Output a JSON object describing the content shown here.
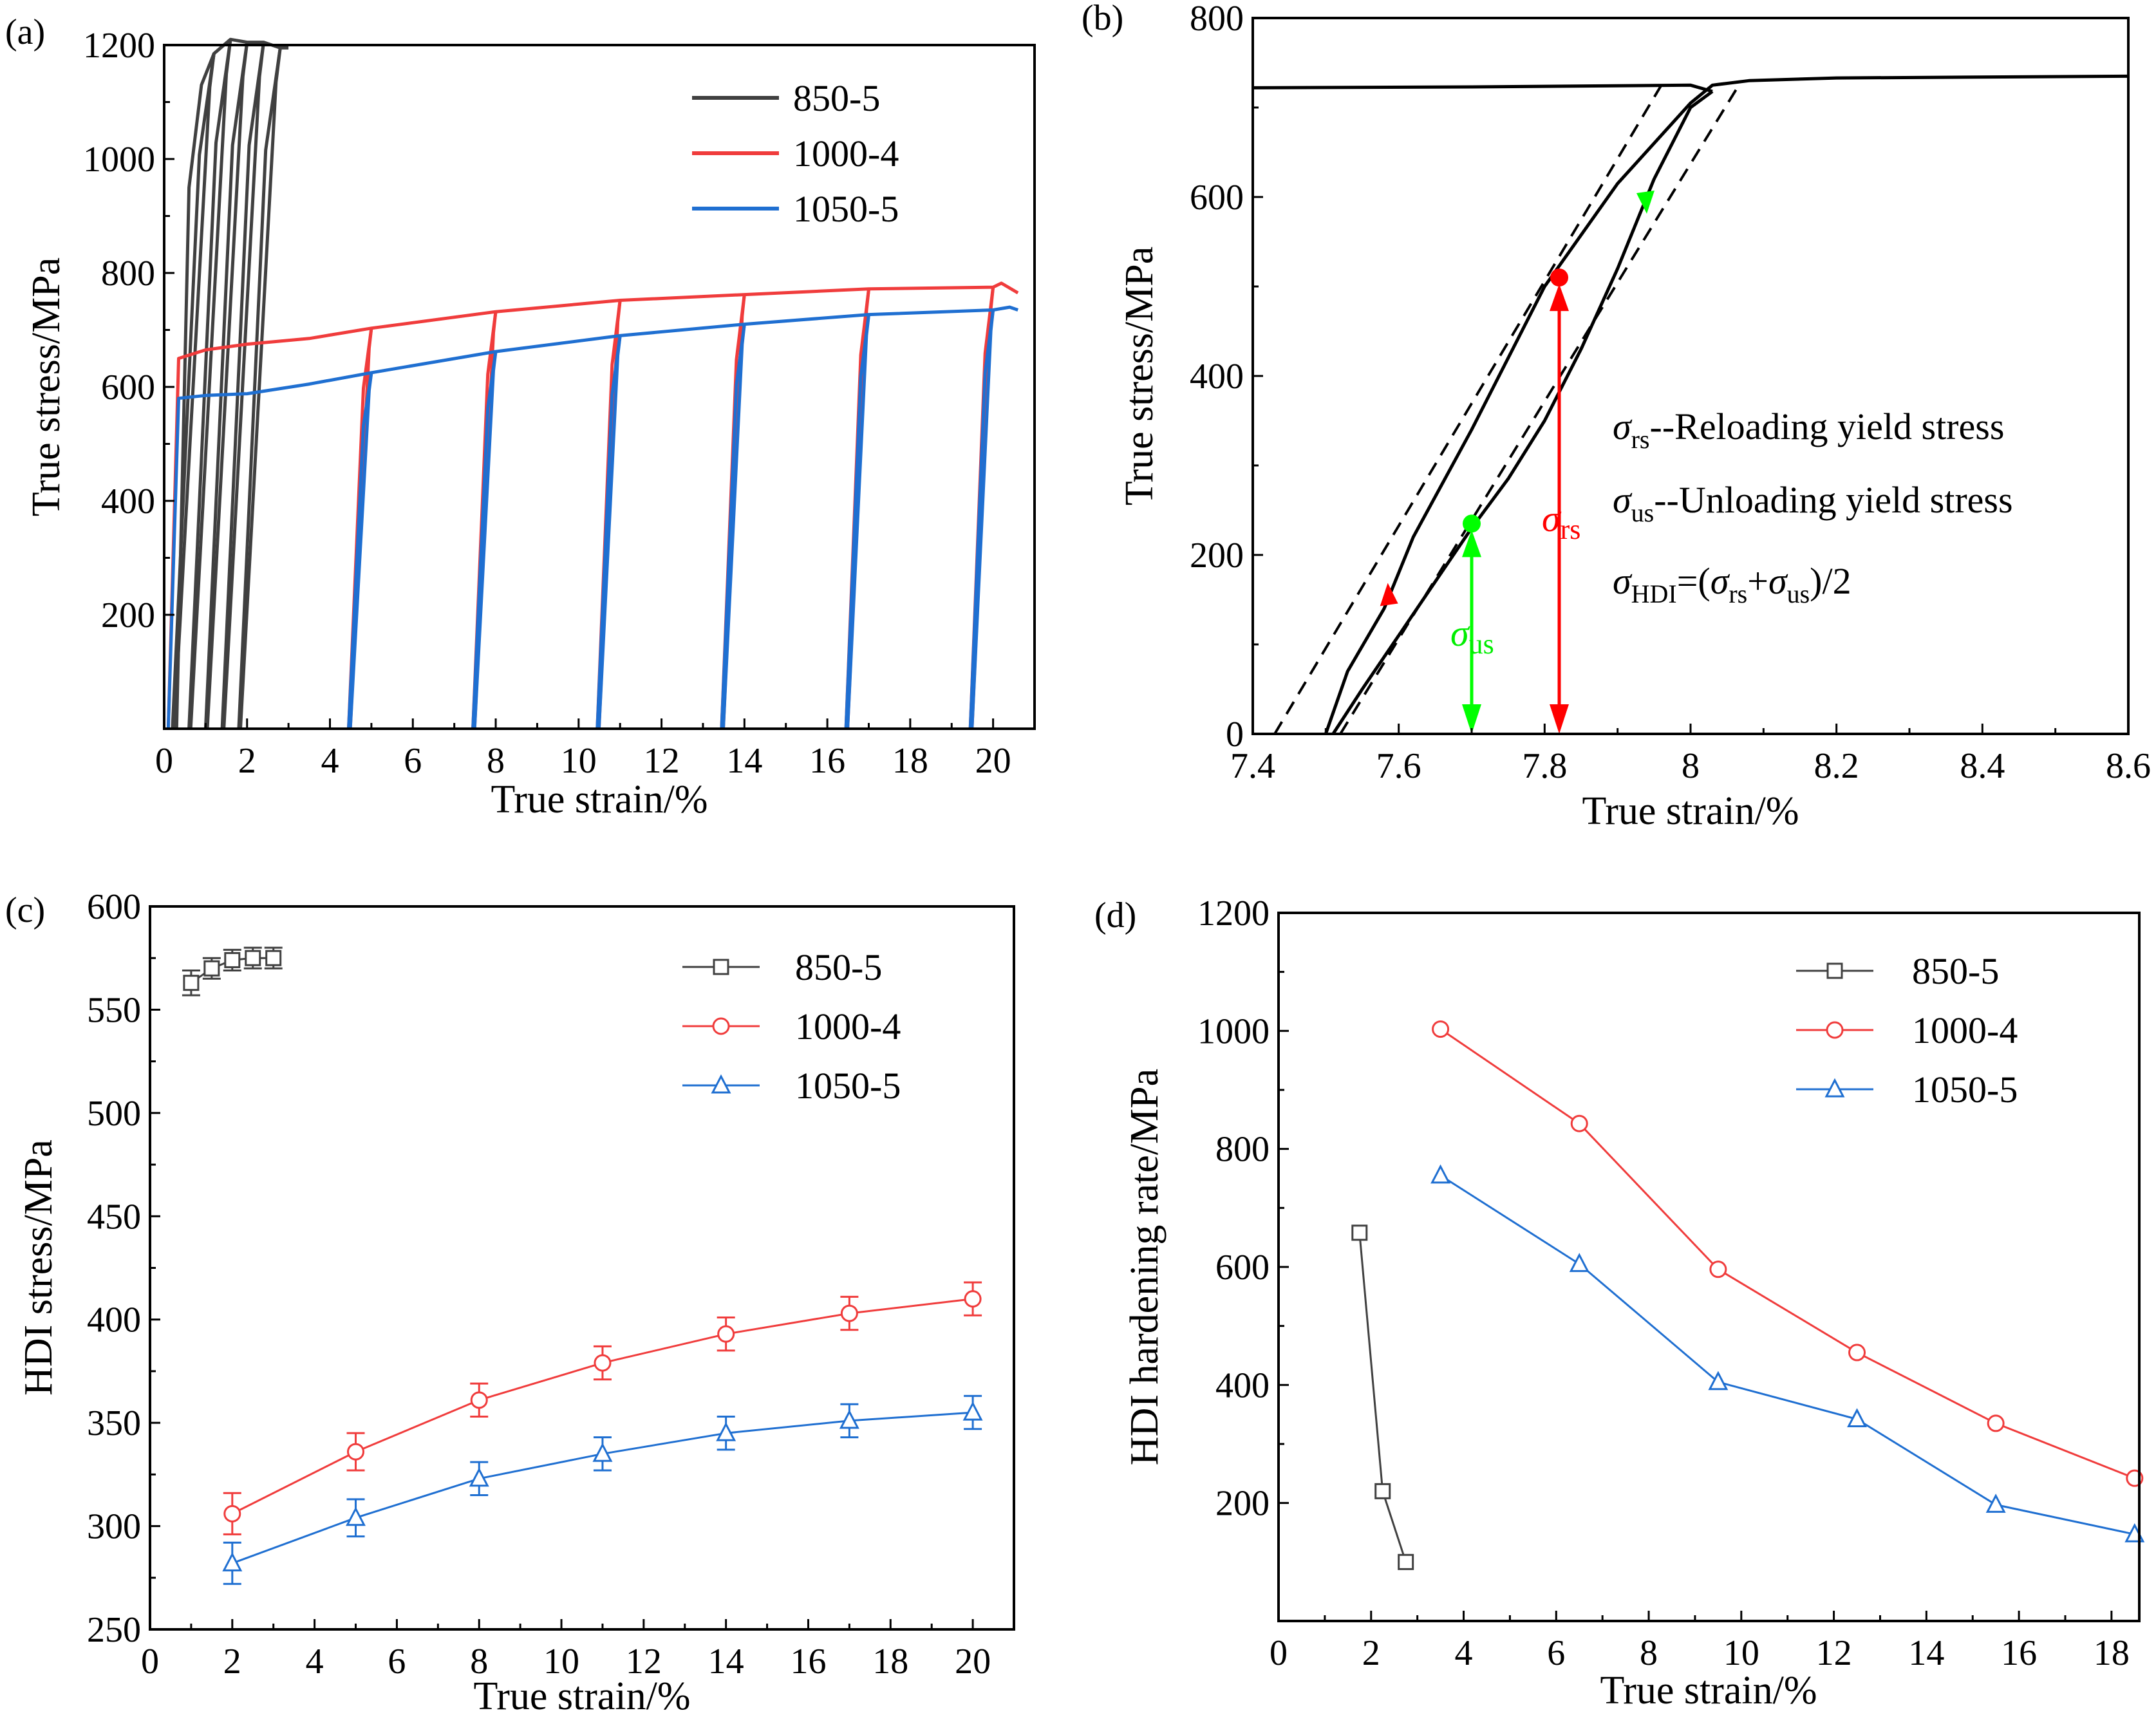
{
  "figure": {
    "panels": [
      {
        "label": "(a)",
        "name": "panel-a-stress-strain"
      },
      {
        "label": "(b)",
        "name": "panel-b-loop-detail"
      },
      {
        "label": "(c)",
        "name": "panel-c-hdi-stress"
      },
      {
        "label": "(d)",
        "name": "panel-d-hdi-hardening"
      }
    ]
  },
  "colors": {
    "s850": "#404040",
    "s1000": "#f03c3c",
    "s1050": "#1f6fd1",
    "red_marker": "#ff0000",
    "green_marker": "#00ff00"
  },
  "chart_data": [
    {
      "id": "a",
      "type": "line",
      "title": "",
      "xlabel": "True strain/%",
      "ylabel": "True stress/MPa",
      "xlim": [
        0,
        21
      ],
      "ylim": [
        0,
        1200
      ],
      "xticks": [
        0,
        2,
        4,
        6,
        8,
        10,
        12,
        14,
        16,
        18,
        20
      ],
      "yticks": [
        200,
        400,
        600,
        800,
        1000,
        1200
      ],
      "legend_position": "top-right",
      "series": [
        {
          "name": "850-5",
          "color_key": "s850",
          "envelope": [
            [
              0.3,
              0
            ],
            [
              0.6,
              950
            ],
            [
              0.9,
              1130
            ],
            [
              1.2,
              1185
            ],
            [
              1.6,
              1210
            ],
            [
              2.0,
              1205
            ],
            [
              2.4,
              1205
            ],
            [
              2.8,
              1195
            ],
            [
              3.0,
              1195
            ]
          ],
          "unload_strains": [
            1.2,
            1.6,
            2.0,
            2.4,
            2.8
          ],
          "loop_width": 1.0
        },
        {
          "name": "1000-4",
          "color_key": "s1000",
          "envelope": [
            [
              0.1,
              0
            ],
            [
              0.35,
              650
            ],
            [
              1.0,
              665
            ],
            [
              2.0,
              675
            ],
            [
              3.5,
              685
            ],
            [
              5.0,
              703
            ],
            [
              8.0,
              732
            ],
            [
              11.0,
              752
            ],
            [
              14.0,
              762
            ],
            [
              17.0,
              772
            ],
            [
              20.0,
              775
            ],
            [
              20.2,
              782
            ],
            [
              20.6,
              765
            ]
          ],
          "unload_strains": [
            5.0,
            8.0,
            11.0,
            14.0,
            17.0,
            20.0
          ],
          "loop_width": 0.55
        },
        {
          "name": "1050-5",
          "color_key": "s1050",
          "envelope": [
            [
              0.1,
              0
            ],
            [
              0.35,
              580
            ],
            [
              1.0,
              585
            ],
            [
              2.0,
              588
            ],
            [
              3.5,
              605
            ],
            [
              5.0,
              625
            ],
            [
              8.0,
              662
            ],
            [
              11.0,
              690
            ],
            [
              14.0,
              710
            ],
            [
              17.0,
              727
            ],
            [
              20.0,
              735
            ],
            [
              20.4,
              740
            ],
            [
              20.6,
              735
            ]
          ],
          "unload_strains": [
            5.0,
            8.0,
            11.0,
            14.0,
            17.0,
            20.0
          ],
          "loop_width": 0.55
        }
      ]
    },
    {
      "id": "b",
      "type": "line",
      "title": "",
      "xlabel": "True strain/%",
      "ylabel": "True stress/MPa",
      "xlim": [
        7.4,
        8.6
      ],
      "ylim": [
        0,
        800
      ],
      "xticks": [
        7.4,
        7.6,
        7.8,
        8.0,
        8.2,
        8.4,
        8.6
      ],
      "yticks": [
        0,
        200,
        400,
        600,
        800
      ],
      "flow_before": [
        [
          7.4,
          722
        ],
        [
          7.7,
          723
        ],
        [
          8.0,
          725
        ],
        [
          8.03,
          718
        ]
      ],
      "unloading": [
        [
          8.03,
          718
        ],
        [
          8.0,
          700
        ],
        [
          7.95,
          620
        ],
        [
          7.9,
          520
        ],
        [
          7.85,
          430
        ],
        [
          7.8,
          350
        ],
        [
          7.75,
          285
        ],
        [
          7.7,
          230
        ],
        [
          7.65,
          170
        ],
        [
          7.6,
          110
        ],
        [
          7.55,
          50
        ],
        [
          7.51,
          0
        ]
      ],
      "reloading": [
        [
          7.5,
          0
        ],
        [
          7.53,
          70
        ],
        [
          7.58,
          140
        ],
        [
          7.62,
          220
        ],
        [
          7.7,
          340
        ],
        [
          7.8,
          500
        ],
        [
          7.9,
          615
        ],
        [
          8.0,
          705
        ],
        [
          8.03,
          725
        ],
        [
          8.08,
          730
        ],
        [
          8.2,
          733
        ],
        [
          8.6,
          735
        ]
      ],
      "dashed_lines": [
        [
          [
            7.43,
            0
          ],
          [
            7.96,
            725
          ]
        ],
        [
          [
            7.52,
            0
          ],
          [
            8.07,
            730
          ]
        ]
      ],
      "sigma_rs": {
        "x": 7.82,
        "y": 510
      },
      "sigma_us": {
        "x": 7.7,
        "y": 235
      },
      "annotations": {
        "sym": "σ",
        "rs_sub": "rs",
        "us_sub": "us",
        "hdi_sub": "HDI",
        "rs_text": "--Reloading yield stress",
        "us_text": "--Unloading yield stress",
        "eq_open": "=(",
        "plus": "+",
        "eq_close": ")/2"
      }
    },
    {
      "id": "c",
      "type": "line",
      "title": "",
      "xlabel": "True strain/%",
      "ylabel": "HDI stress/MPa",
      "xlim": [
        0,
        21
      ],
      "ylim": [
        250,
        600
      ],
      "xticks": [
        0,
        2,
        4,
        6,
        8,
        10,
        12,
        14,
        16,
        18,
        20
      ],
      "yticks": [
        250,
        300,
        350,
        400,
        450,
        500,
        550,
        600
      ],
      "legend_position": "top-right",
      "series": [
        {
          "name": "850-5",
          "marker": "square",
          "color_key": "s850",
          "x": [
            1,
            1.5,
            2,
            2.5,
            3
          ],
          "y": [
            563,
            570,
            574,
            575,
            575
          ],
          "err": [
            6,
            5,
            5,
            5,
            5
          ]
        },
        {
          "name": "1000-4",
          "marker": "circle",
          "color_key": "s1000",
          "x": [
            2,
            5,
            8,
            11,
            14,
            17,
            20
          ],
          "y": [
            306,
            336,
            361,
            379,
            393,
            403,
            410
          ],
          "err": [
            10,
            9,
            8,
            8,
            8,
            8,
            8
          ]
        },
        {
          "name": "1050-5",
          "marker": "triangle",
          "color_key": "s1050",
          "x": [
            2,
            5,
            8,
            11,
            14,
            17,
            20
          ],
          "y": [
            282,
            304,
            323,
            335,
            345,
            351,
            355
          ],
          "err": [
            10,
            9,
            8,
            8,
            8,
            8,
            8
          ]
        }
      ]
    },
    {
      "id": "d",
      "type": "line",
      "title": "",
      "xlabel": "True strain/%",
      "ylabel": "HDI hardening rate/MPa",
      "xlim": [
        0,
        18.6
      ],
      "ylim": [
        0,
        1200
      ],
      "xticks": [
        0,
        2,
        4,
        6,
        8,
        10,
        12,
        14,
        16,
        18
      ],
      "yticks": [
        200,
        400,
        600,
        800,
        1000,
        1200
      ],
      "legend_position": "top-right",
      "series": [
        {
          "name": "850-5",
          "marker": "square",
          "color_key": "s850",
          "x": [
            1.75,
            2.25,
            2.75
          ],
          "y": [
            658,
            220,
            100
          ]
        },
        {
          "name": "1000-4",
          "marker": "circle",
          "color_key": "s1000",
          "x": [
            3.5,
            6.5,
            9.5,
            12.5,
            15.5,
            18.5
          ],
          "y": [
            1003,
            843,
            596,
            455,
            335,
            242
          ]
        },
        {
          "name": "1050-5",
          "marker": "triangle",
          "color_key": "s1050",
          "x": [
            3.5,
            6.5,
            9.5,
            12.5,
            15.5,
            18.5
          ],
          "y": [
            755,
            605,
            405,
            342,
            197,
            147
          ]
        }
      ]
    }
  ]
}
